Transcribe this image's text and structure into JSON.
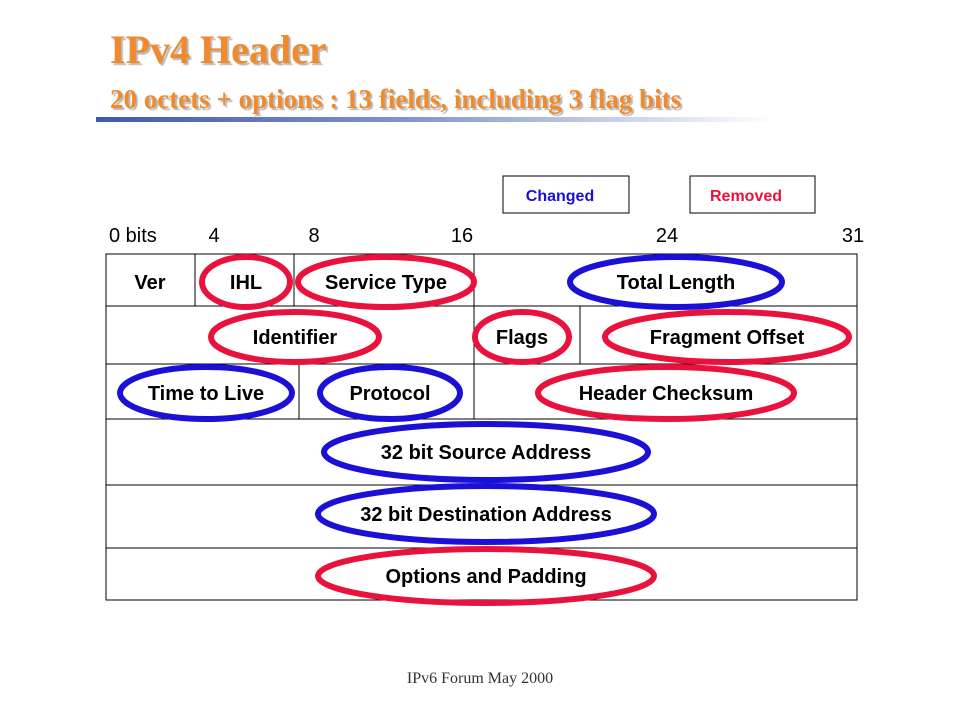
{
  "header": {
    "title": "IPv4 Header",
    "subtitle": "20 octets + options : 13 fields, including 3 flag bits"
  },
  "legend": {
    "changed": "Changed",
    "removed": "Removed"
  },
  "bit_ruler": [
    "0 bits",
    "4",
    "8",
    "16",
    "24",
    "31"
  ],
  "fields": {
    "ver": "Ver",
    "ihl": "IHL",
    "service_type": "Service Type",
    "total_length": "Total Length",
    "identifier": "Identifier",
    "flags": "Flags",
    "fragment_offset": "Fragment Offset",
    "ttl": "Time to Live",
    "protocol": "Protocol",
    "header_checksum": "Header Checksum",
    "source_address": "32 bit Source Address",
    "destination_address": "32 bit Destination Address",
    "options_padding": "Options and Padding"
  },
  "colors": {
    "changed": "#1a10d6",
    "removed": "#e8123c",
    "title": "#f08a2c"
  },
  "footer": {
    "text": "IPv6 Forum May 2000"
  }
}
